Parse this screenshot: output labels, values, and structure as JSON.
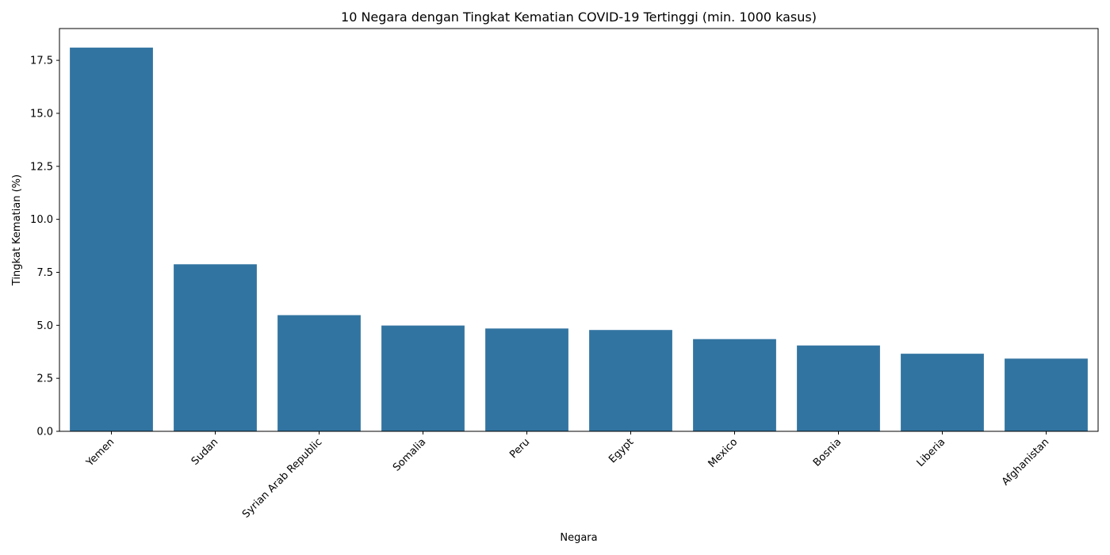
{
  "chart_data": {
    "type": "bar",
    "title": "10 Negara dengan Tingkat Kematian COVID-19 Tertinggi (min. 1000 kasus)",
    "xlabel": "Negara",
    "ylabel": "Tingkat Kematian (%)",
    "categories": [
      "Yemen",
      "Sudan",
      "Syrian Arab Republic",
      "Somalia",
      "Peru",
      "Egypt",
      "Mexico",
      "Bosnia",
      "Liberia",
      "Afghanistan"
    ],
    "values": [
      18.1,
      7.88,
      5.48,
      4.99,
      4.85,
      4.78,
      4.35,
      4.05,
      3.66,
      3.43
    ],
    "ylim": [
      0,
      19.0
    ],
    "yticks": [
      "0.0",
      "2.5",
      "5.0",
      "7.5",
      "10.0",
      "12.5",
      "15.0",
      "17.5"
    ],
    "grid": false,
    "bar_color": "#3274a1"
  }
}
